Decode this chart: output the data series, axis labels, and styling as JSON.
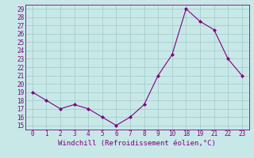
{
  "xlabel": "Windchill (Refroidissement éolien,°C)",
  "x_positions": [
    0,
    1,
    2,
    3,
    4,
    5,
    6,
    7,
    8,
    9,
    10,
    11,
    12,
    13,
    14,
    15
  ],
  "x_labels": [
    "0",
    "1",
    "2",
    "3",
    "4",
    "5",
    "6",
    "7",
    "8",
    "9",
    "10",
    "18",
    "19",
    "21",
    "22",
    "23"
  ],
  "y_values": [
    19,
    18,
    17,
    17.5,
    17,
    16,
    15,
    16,
    17.5,
    21,
    23.5,
    29,
    27.5,
    26.5,
    23,
    21
  ],
  "line_color": "#800080",
  "marker_color": "#800080",
  "bg_color": "#c8e8e8",
  "grid_color": "#a0c8c8",
  "ylim": [
    14.5,
    29.5
  ],
  "yticks": [
    15,
    16,
    17,
    18,
    19,
    20,
    21,
    22,
    23,
    24,
    25,
    26,
    27,
    28,
    29
  ],
  "xlim": [
    -0.5,
    15.5
  ],
  "label_fontsize": 6.5,
  "tick_fontsize": 5.5
}
